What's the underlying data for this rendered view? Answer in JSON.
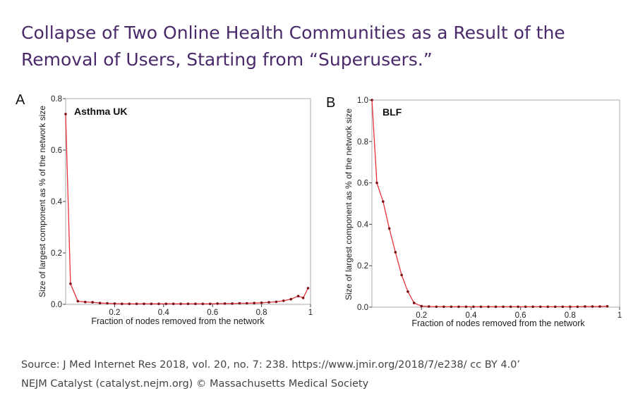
{
  "title": {
    "line1": "Collapse of Two Online Health Communities as a Result of the",
    "line2": "Removal of Users, Starting from “Superusers.”"
  },
  "footer": {
    "source": "Source: J Med Internet Res 2018, vol. 20, no. 7: 238. https://www.jmir.org/2018/7/e238/  cc BY 4.0’",
    "credit": "NEJM Catalyst (catalyst.nejm.org) © Massachusetts Medical Society"
  },
  "colors": {
    "title": "#4a2a6a",
    "line": "#e8323c",
    "marker": "#7a1015",
    "axis": "#444444"
  },
  "chart_data": [
    {
      "type": "line",
      "panel": "A",
      "title": "Asthma UK",
      "xlabel": "Fraction of nodes removed from the network",
      "ylabel": "Size of largest component as % of the network size",
      "xlim": [
        0,
        1
      ],
      "ylim": [
        0,
        0.8
      ],
      "xticks": [
        "0.2",
        "0.4",
        "0.6",
        "0.8",
        "1"
      ],
      "xtick_values": [
        0.2,
        0.4,
        0.6,
        0.8,
        1.0
      ],
      "yticks": [
        "0.0",
        "0.2",
        "0.4",
        "0.6",
        "0.8"
      ],
      "ytick_values": [
        0.0,
        0.2,
        0.4,
        0.6,
        0.8
      ],
      "x": [
        0.0,
        0.02,
        0.05,
        0.08,
        0.11,
        0.14,
        0.17,
        0.2,
        0.23,
        0.26,
        0.29,
        0.32,
        0.35,
        0.38,
        0.41,
        0.44,
        0.47,
        0.5,
        0.53,
        0.56,
        0.59,
        0.62,
        0.65,
        0.68,
        0.71,
        0.74,
        0.77,
        0.8,
        0.83,
        0.86,
        0.89,
        0.92,
        0.95,
        0.97,
        0.99
      ],
      "y": [
        0.74,
        0.08,
        0.012,
        0.009,
        0.008,
        0.005,
        0.004,
        0.003,
        0.002,
        0.002,
        0.002,
        0.002,
        0.002,
        0.002,
        0.002,
        0.002,
        0.002,
        0.002,
        0.002,
        0.002,
        0.002,
        0.003,
        0.003,
        0.003,
        0.004,
        0.004,
        0.005,
        0.006,
        0.008,
        0.01,
        0.014,
        0.02,
        0.032,
        0.025,
        0.063
      ]
    },
    {
      "type": "line",
      "panel": "B",
      "title": "BLF",
      "xlabel": "Fraction of nodes removed from the network",
      "ylabel": "Size of largest component as % of the network size",
      "xlim": [
        0,
        1
      ],
      "ylim": [
        0,
        1.0
      ],
      "xticks": [
        "0.2",
        "0.4",
        "0.6",
        "0.8",
        "1"
      ],
      "xtick_values": [
        0.2,
        0.4,
        0.6,
        0.8,
        1.0
      ],
      "yticks": [
        "0.0",
        "0.2",
        "0.4",
        "0.6",
        "0.8",
        "1.0"
      ],
      "ytick_values": [
        0.0,
        0.2,
        0.4,
        0.6,
        0.8,
        1.0
      ],
      "x": [
        0.0,
        0.02,
        0.045,
        0.07,
        0.095,
        0.12,
        0.145,
        0.17,
        0.2,
        0.23,
        0.26,
        0.29,
        0.32,
        0.35,
        0.38,
        0.41,
        0.44,
        0.47,
        0.5,
        0.53,
        0.56,
        0.59,
        0.62,
        0.65,
        0.68,
        0.71,
        0.74,
        0.77,
        0.8,
        0.83,
        0.86,
        0.89,
        0.92,
        0.95
      ],
      "y": [
        1.0,
        0.6,
        0.51,
        0.38,
        0.265,
        0.155,
        0.075,
        0.02,
        0.005,
        0.003,
        0.002,
        0.002,
        0.002,
        0.002,
        0.002,
        0.002,
        0.002,
        0.002,
        0.002,
        0.002,
        0.002,
        0.002,
        0.002,
        0.002,
        0.002,
        0.002,
        0.002,
        0.002,
        0.002,
        0.002,
        0.003,
        0.003,
        0.003,
        0.004
      ]
    }
  ]
}
